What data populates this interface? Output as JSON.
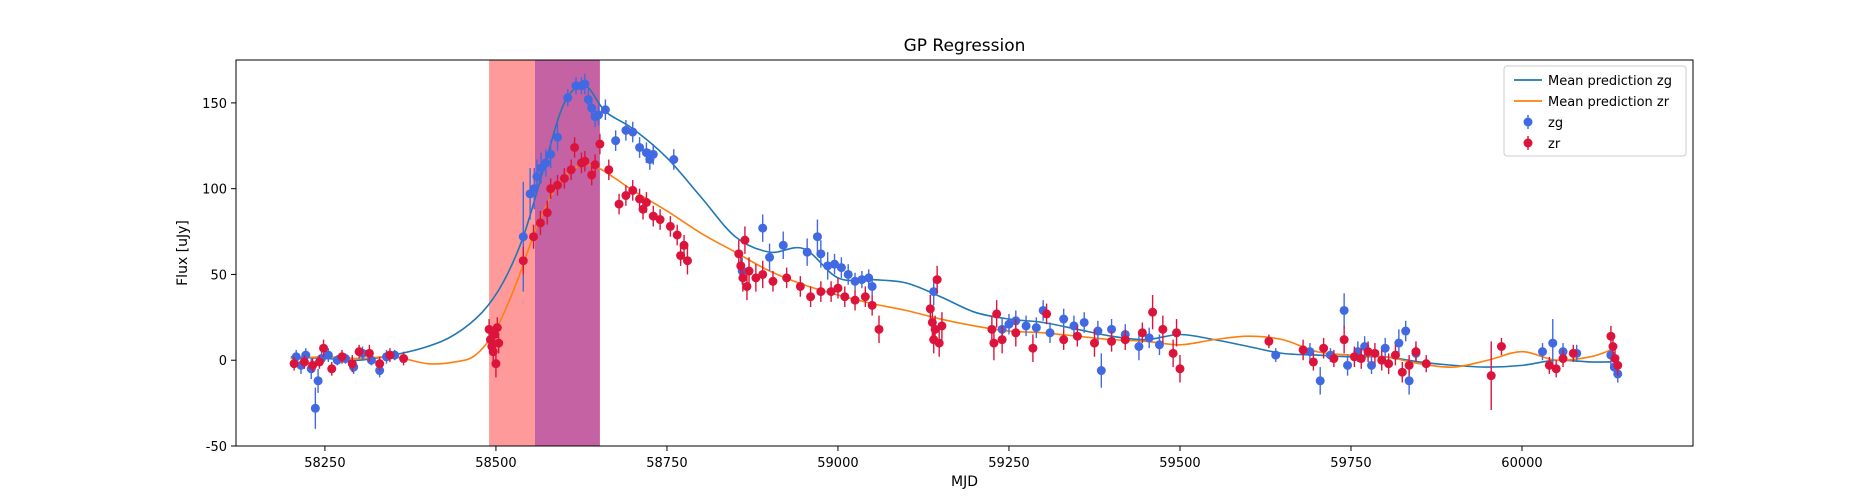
{
  "chart_data": {
    "type": "scatter",
    "title": "GP Regression",
    "xlabel": "MJD",
    "ylabel": "Flux [uJy]",
    "xlim": [
      58120,
      60250
    ],
    "ylim": [
      -50,
      175
    ],
    "xticks": [
      58250,
      58500,
      58750,
      59000,
      59250,
      59500,
      59750,
      60000
    ],
    "yticks": [
      -50,
      0,
      50,
      100,
      150
    ],
    "grid": false,
    "legend_position": "top-right",
    "shaded_regions": [
      {
        "x0": 58490,
        "x1": 58557,
        "color": "#ff9a9a"
      },
      {
        "x0": 58557,
        "x1": 58652,
        "color": "#c462a3"
      }
    ],
    "series": [
      {
        "name": "Mean prediction zg",
        "kind": "line",
        "color": "#1f77b4",
        "x": [
          58200,
          58250,
          58300,
          58350,
          58400,
          58440,
          58480,
          58510,
          58540,
          58570,
          58600,
          58630,
          58660,
          58700,
          58750,
          58800,
          58850,
          58900,
          58950,
          59000,
          59050,
          59100,
          59150,
          59200,
          59250,
          59300,
          59350,
          59400,
          59450,
          59500,
          59550,
          59600,
          59650,
          59700,
          59750,
          59800,
          59850,
          59900,
          59950,
          60000,
          60050,
          60100,
          60130
        ],
        "y": [
          2,
          1,
          0,
          3,
          8,
          15,
          28,
          45,
          72,
          112,
          150,
          160,
          145,
          135,
          118,
          95,
          72,
          63,
          65,
          48,
          47,
          45,
          37,
          28,
          24,
          22,
          18,
          14,
          12,
          15,
          12,
          8,
          4,
          3,
          2,
          2,
          -1,
          -3,
          -4,
          -3,
          0,
          -1,
          -1
        ]
      },
      {
        "name": "Mean prediction zr",
        "kind": "line",
        "color": "#ff7f0e",
        "x": [
          58200,
          58250,
          58300,
          58350,
          58400,
          58440,
          58470,
          58500,
          58530,
          58560,
          58590,
          58620,
          58650,
          58700,
          58750,
          58800,
          58850,
          58900,
          58950,
          59000,
          59050,
          59100,
          59150,
          59200,
          59250,
          59300,
          59350,
          59400,
          59450,
          59500,
          59550,
          59600,
          59650,
          59700,
          59750,
          59800,
          59850,
          59900,
          59950,
          60000,
          60050,
          60100,
          60130
        ],
        "y": [
          1,
          2,
          1,
          2,
          -2,
          -1,
          3,
          18,
          45,
          78,
          102,
          113,
          112,
          99,
          87,
          74,
          63,
          52,
          44,
          38,
          33,
          29,
          24,
          20,
          17,
          16,
          14,
          12,
          11,
          9,
          12,
          14,
          12,
          5,
          3,
          2,
          -2,
          -4,
          0,
          5,
          0,
          2,
          6
        ]
      },
      {
        "name": "zg",
        "kind": "errorbar",
        "color": "#4169e1",
        "points": [
          [
            58208,
            2,
            4
          ],
          [
            58215,
            -3,
            5
          ],
          [
            58222,
            3,
            4
          ],
          [
            58230,
            -5,
            6
          ],
          [
            58236,
            -28,
            12
          ],
          [
            58240,
            -12,
            7
          ],
          [
            58245,
            1,
            4
          ],
          [
            58255,
            3,
            4
          ],
          [
            58268,
            0,
            3
          ],
          [
            58280,
            1,
            3
          ],
          [
            58292,
            -4,
            4
          ],
          [
            58305,
            4,
            4
          ],
          [
            58318,
            0,
            3
          ],
          [
            58330,
            -6,
            4
          ],
          [
            58340,
            2,
            4
          ],
          [
            58352,
            3,
            3
          ],
          [
            58540,
            72,
            32
          ],
          [
            58550,
            97,
            15
          ],
          [
            58556,
            100,
            12
          ],
          [
            58560,
            107,
            10
          ],
          [
            58566,
            112,
            9
          ],
          [
            58573,
            115,
            8
          ],
          [
            58580,
            120,
            8
          ],
          [
            58590,
            130,
            8
          ],
          [
            58605,
            153,
            5
          ],
          [
            58617,
            160,
            5
          ],
          [
            58625,
            160,
            5
          ],
          [
            58630,
            161,
            6
          ],
          [
            58635,
            152,
            6
          ],
          [
            58640,
            147,
            6
          ],
          [
            58645,
            142,
            6
          ],
          [
            58650,
            143,
            6
          ],
          [
            58660,
            146,
            6
          ],
          [
            58675,
            128,
            6
          ],
          [
            58690,
            134,
            6
          ],
          [
            58700,
            133,
            6
          ],
          [
            58710,
            124,
            6
          ],
          [
            58720,
            121,
            6
          ],
          [
            58725,
            117,
            6
          ],
          [
            58730,
            120,
            6
          ],
          [
            58760,
            117,
            6
          ],
          [
            58860,
            52,
            8
          ],
          [
            58890,
            77,
            8
          ],
          [
            58900,
            60,
            8
          ],
          [
            58920,
            67,
            8
          ],
          [
            58955,
            63,
            8
          ],
          [
            58970,
            72,
            10
          ],
          [
            58975,
            62,
            8
          ],
          [
            58985,
            55,
            8
          ],
          [
            58995,
            56,
            6
          ],
          [
            59005,
            54,
            6
          ],
          [
            59015,
            50,
            6
          ],
          [
            59025,
            46,
            5
          ],
          [
            59035,
            47,
            5
          ],
          [
            59045,
            48,
            5
          ],
          [
            59050,
            43,
            5
          ],
          [
            59140,
            40,
            8
          ],
          [
            59240,
            18,
            6
          ],
          [
            59250,
            21,
            6
          ],
          [
            59260,
            23,
            6
          ],
          [
            59275,
            20,
            6
          ],
          [
            59290,
            19,
            6
          ],
          [
            59300,
            29,
            6
          ],
          [
            59310,
            16,
            6
          ],
          [
            59330,
            24,
            6
          ],
          [
            59345,
            20,
            6
          ],
          [
            59360,
            22,
            6
          ],
          [
            59380,
            17,
            6
          ],
          [
            59385,
            -6,
            10
          ],
          [
            59400,
            18,
            6
          ],
          [
            59420,
            15,
            6
          ],
          [
            59440,
            8,
            8
          ],
          [
            59455,
            13,
            6
          ],
          [
            59470,
            9,
            6
          ],
          [
            59640,
            3,
            4
          ],
          [
            59690,
            5,
            5
          ],
          [
            59705,
            -12,
            8
          ],
          [
            59720,
            3,
            4
          ],
          [
            59740,
            29,
            10
          ],
          [
            59745,
            -3,
            6
          ],
          [
            59760,
            5,
            6
          ],
          [
            59770,
            8,
            6
          ],
          [
            59780,
            -3,
            5
          ],
          [
            59800,
            7,
            6
          ],
          [
            59820,
            10,
            8
          ],
          [
            59830,
            17,
            6
          ],
          [
            59835,
            -12,
            8
          ],
          [
            59845,
            4,
            5
          ],
          [
            60030,
            5,
            5
          ],
          [
            60045,
            10,
            14
          ],
          [
            60060,
            5,
            5
          ],
          [
            60080,
            4,
            5
          ],
          [
            60130,
            3,
            6
          ],
          [
            60135,
            -4,
            5
          ],
          [
            60140,
            -8,
            5
          ]
        ]
      },
      {
        "name": "zr",
        "kind": "errorbar",
        "color": "#dc143c",
        "points": [
          [
            58205,
            -2,
            4
          ],
          [
            58220,
            -1,
            4
          ],
          [
            58232,
            -3,
            4
          ],
          [
            58242,
            -1,
            4
          ],
          [
            58248,
            7,
            5
          ],
          [
            58260,
            -5,
            4
          ],
          [
            58275,
            2,
            4
          ],
          [
            58290,
            -2,
            5
          ],
          [
            58300,
            5,
            4
          ],
          [
            58315,
            4,
            5
          ],
          [
            58330,
            -2,
            4
          ],
          [
            58345,
            3,
            4
          ],
          [
            58365,
            1,
            4
          ],
          [
            58490,
            18,
            6
          ],
          [
            58492,
            12,
            6
          ],
          [
            58494,
            8,
            5
          ],
          [
            58496,
            5,
            6
          ],
          [
            58498,
            15,
            6
          ],
          [
            58500,
            -2,
            8
          ],
          [
            58502,
            19,
            6
          ],
          [
            58504,
            10,
            6
          ],
          [
            58540,
            58,
            8
          ],
          [
            58555,
            72,
            7
          ],
          [
            58565,
            80,
            7
          ],
          [
            58575,
            86,
            7
          ],
          [
            58580,
            100,
            6
          ],
          [
            58590,
            102,
            6
          ],
          [
            58600,
            106,
            6
          ],
          [
            58610,
            111,
            6
          ],
          [
            58615,
            124,
            6
          ],
          [
            58625,
            115,
            6
          ],
          [
            58630,
            116,
            6
          ],
          [
            58640,
            108,
            6
          ],
          [
            58645,
            114,
            6
          ],
          [
            58652,
            126,
            6
          ],
          [
            58665,
            111,
            6
          ],
          [
            58680,
            91,
            6
          ],
          [
            58690,
            96,
            6
          ],
          [
            58700,
            99,
            6
          ],
          [
            58710,
            94,
            6
          ],
          [
            58715,
            88,
            6
          ],
          [
            58720,
            92,
            6
          ],
          [
            58730,
            84,
            6
          ],
          [
            58740,
            82,
            6
          ],
          [
            58755,
            78,
            6
          ],
          [
            58765,
            73,
            6
          ],
          [
            58770,
            61,
            6
          ],
          [
            58775,
            67,
            6
          ],
          [
            58780,
            58,
            8
          ],
          [
            58855,
            62,
            8
          ],
          [
            58858,
            55,
            8
          ],
          [
            58861,
            48,
            8
          ],
          [
            58864,
            70,
            8
          ],
          [
            58867,
            43,
            8
          ],
          [
            58870,
            52,
            8
          ],
          [
            58880,
            48,
            8
          ],
          [
            58890,
            50,
            8
          ],
          [
            58905,
            46,
            6
          ],
          [
            58925,
            48,
            6
          ],
          [
            58945,
            43,
            6
          ],
          [
            58960,
            37,
            6
          ],
          [
            58975,
            40,
            6
          ],
          [
            58990,
            40,
            6
          ],
          [
            59000,
            42,
            6
          ],
          [
            59010,
            37,
            6
          ],
          [
            59025,
            35,
            6
          ],
          [
            59040,
            37,
            6
          ],
          [
            59050,
            32,
            6
          ],
          [
            59060,
            18,
            8
          ],
          [
            59135,
            30,
            8
          ],
          [
            59138,
            22,
            8
          ],
          [
            59140,
            12,
            8
          ],
          [
            59142,
            18,
            8
          ],
          [
            59145,
            47,
            8
          ],
          [
            59148,
            10,
            8
          ],
          [
            59152,
            20,
            8
          ],
          [
            59225,
            18,
            8
          ],
          [
            59228,
            10,
            10
          ],
          [
            59232,
            27,
            8
          ],
          [
            59240,
            12,
            8
          ],
          [
            59260,
            16,
            8
          ],
          [
            59285,
            7,
            8
          ],
          [
            59305,
            27,
            6
          ],
          [
            59330,
            12,
            6
          ],
          [
            59350,
            14,
            6
          ],
          [
            59375,
            10,
            8
          ],
          [
            59400,
            11,
            6
          ],
          [
            59420,
            12,
            6
          ],
          [
            59445,
            16,
            6
          ],
          [
            59460,
            28,
            10
          ],
          [
            59475,
            18,
            8
          ],
          [
            59490,
            4,
            8
          ],
          [
            59495,
            16,
            8
          ],
          [
            59500,
            -5,
            8
          ],
          [
            59630,
            11,
            4
          ],
          [
            59680,
            6,
            6
          ],
          [
            59695,
            -1,
            5
          ],
          [
            59710,
            7,
            6
          ],
          [
            59725,
            1,
            5
          ],
          [
            59740,
            12,
            8
          ],
          [
            59755,
            2,
            6
          ],
          [
            59765,
            1,
            6
          ],
          [
            59775,
            5,
            6
          ],
          [
            59785,
            4,
            6
          ],
          [
            59795,
            0,
            6
          ],
          [
            59805,
            -2,
            6
          ],
          [
            59815,
            3,
            6
          ],
          [
            59825,
            -7,
            6
          ],
          [
            59835,
            -3,
            6
          ],
          [
            59845,
            5,
            6
          ],
          [
            59860,
            -2,
            5
          ],
          [
            59955,
            -9,
            20
          ],
          [
            59970,
            8,
            5
          ],
          [
            60040,
            -3,
            5
          ],
          [
            60050,
            -5,
            5
          ],
          [
            60060,
            1,
            5
          ],
          [
            60075,
            4,
            5
          ],
          [
            60130,
            14,
            6
          ],
          [
            60133,
            8,
            6
          ],
          [
            60136,
            1,
            6
          ],
          [
            60140,
            -3,
            6
          ]
        ]
      }
    ]
  }
}
